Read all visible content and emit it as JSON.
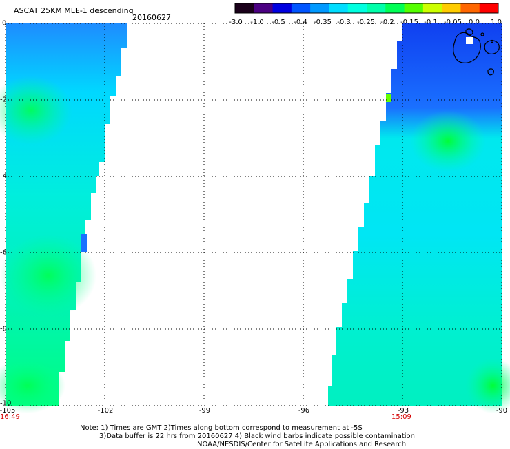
{
  "title": "ASCAT 25KM MLE-1 descending",
  "date": "20160627",
  "colorbar": {
    "labels": [
      "-3.0",
      "-1.0",
      "-0.5",
      "-0.4",
      "-0.35",
      "-0.3",
      "-0.25",
      "-0.2",
      "-0.15",
      "-0.1",
      "-0.05",
      "0.0",
      "1.0"
    ],
    "colors": [
      "#1a001a",
      "#4b0082",
      "#0000e0",
      "#0055ff",
      "#0099ff",
      "#00ddff",
      "#00ffe0",
      "#00ffaa",
      "#00ff55",
      "#55ff00",
      "#ccff00",
      "#ffcc00",
      "#ff6600",
      "#ff0000"
    ]
  },
  "axes": {
    "lon_labels": [
      "-105",
      "-102",
      "-99",
      "-96",
      "-93",
      "-90"
    ],
    "lat_labels": [
      "0",
      "-2",
      "-4",
      "-6",
      "-8",
      "-10"
    ],
    "time_left": "16:49",
    "time_right": "15:09"
  },
  "notes": [
    "Note: 1) Times are GMT 2)Times along bottom correspond to measurement at -5S",
    "3)Data buffer is 22 hrs from 20160627 4) Black wind barbs indicate possible contamination",
    "NOAA/NESDIS/Center for Satellite Applications and Research"
  ]
}
